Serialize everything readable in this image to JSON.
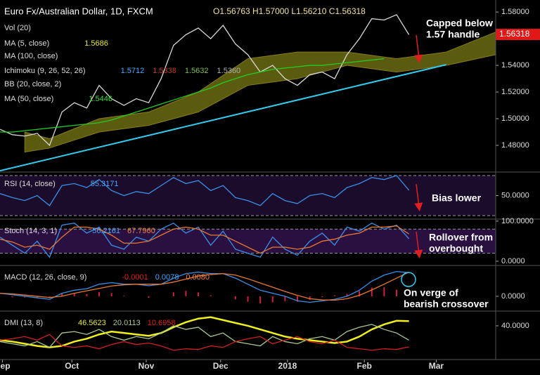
{
  "chart_data": [
    {
      "type": "line",
      "title": "Euro Fx/Australian Dollar, 1D, FXCM",
      "legend_values": "O1.56763 H1.57000 L1.56210 C1.56318",
      "indicators": [
        {
          "name": "Vol (20)"
        },
        {
          "name": "MA (5, close)",
          "readings": [
            {
              "text": "1.5686",
              "color": "#e8e840"
            }
          ]
        },
        {
          "name": "MA (100, close)"
        },
        {
          "name": "Ichimoku (9, 26, 52, 26)",
          "readings": [
            {
              "text": "1.5712",
              "color": "#4aa8ff"
            },
            {
              "text": "1.5338",
              "color": "#c0392b"
            },
            {
              "text": "1.5632",
              "color": "#7cc050"
            },
            {
              "text": "1.5360",
              "color": "#b0b0b0"
            }
          ]
        },
        {
          "name": "BB (20, close, 2)"
        },
        {
          "name": "MA (50, close)",
          "readings": [
            {
              "text": "1.5446",
              "color": "#40e040"
            }
          ]
        }
      ],
      "x": [
        0,
        5,
        10,
        15,
        20,
        25,
        30,
        35,
        40,
        45,
        50,
        55,
        60,
        65,
        70,
        75,
        80,
        85,
        90,
        95,
        100,
        105,
        110,
        115,
        120,
        125,
        130,
        135,
        140,
        145,
        150,
        155,
        160,
        165
      ],
      "series": [
        {
          "color": "#d8d8d8",
          "values": [
            1.492,
            1.488,
            1.487,
            1.489,
            1.48,
            1.505,
            1.512,
            1.508,
            1.525,
            1.515,
            1.51,
            1.515,
            1.512,
            1.53,
            1.555,
            1.563,
            1.568,
            1.56,
            1.57,
            1.556,
            1.548,
            1.535,
            1.54,
            1.53,
            1.525,
            1.533,
            1.535,
            1.53,
            1.548,
            1.56,
            1.575,
            1.574,
            1.578,
            1.563
          ]
        },
        {
          "color": "#22cc22",
          "values": [
            1.49,
            1.49,
            1.491,
            1.492,
            1.493,
            1.494,
            1.495,
            1.496,
            1.497,
            1.499,
            1.502,
            1.505,
            1.508,
            1.511,
            1.514,
            1.517,
            1.52,
            1.523,
            1.527,
            1.53,
            1.533,
            1.535,
            1.537,
            1.538,
            1.539,
            1.54,
            1.54,
            1.541,
            1.542,
            1.543,
            1.544,
            1.545,
            null,
            null
          ]
        }
      ],
      "cloud": {
        "color": "#6b6b12",
        "x": [
          10,
          20,
          40,
          60,
          80,
          100,
          120,
          140,
          160,
          180,
          200
        ],
        "upper": [
          1.49,
          1.485,
          1.5,
          1.505,
          1.52,
          1.545,
          1.55,
          1.55,
          1.545,
          1.55,
          1.565
        ],
        "lower": [
          1.475,
          1.478,
          1.49,
          1.495,
          1.505,
          1.525,
          1.53,
          1.54,
          1.535,
          1.54,
          1.548
        ]
      },
      "trendline": {
        "color": "#33ccee",
        "x": [
          0,
          180
        ],
        "values": [
          1.461,
          1.5405
        ]
      },
      "last_price": 1.56318,
      "last_price_label": "1.56318",
      "last_price_color": "#e01818",
      "annotations": [
        {
          "lines": [
            "Capped below",
            "1.57 handle"
          ]
        }
      ],
      "xlim": [
        0,
        200
      ],
      "ylim": [
        1.46,
        1.589
      ],
      "yticks": [
        {
          "value": 1.48,
          "label": "1.48000"
        },
        {
          "value": 1.5,
          "label": "1.50000"
        },
        {
          "value": 1.52,
          "label": "1.52000"
        },
        {
          "value": 1.54,
          "label": "1.54000"
        },
        {
          "value": 1.58,
          "label": "1.58000"
        }
      ]
    },
    {
      "type": "line",
      "title": "RSI (14, close)",
      "readings": [
        {
          "text": "55.3171",
          "color": "#4aa8ff"
        }
      ],
      "x": [
        0,
        5,
        10,
        15,
        20,
        25,
        30,
        35,
        40,
        45,
        50,
        55,
        60,
        65,
        70,
        75,
        80,
        85,
        90,
        95,
        100,
        105,
        110,
        115,
        120,
        125,
        130,
        135,
        140,
        145,
        150,
        155,
        160,
        165
      ],
      "series": [
        {
          "color": "#3a8fe8",
          "values": [
            52,
            48,
            45,
            50,
            40,
            60,
            62,
            58,
            66,
            55,
            50,
            54,
            52,
            60,
            68,
            62,
            65,
            55,
            60,
            48,
            45,
            40,
            52,
            45,
            42,
            50,
            52,
            48,
            58,
            62,
            68,
            66,
            70,
            55.3171
          ]
        }
      ],
      "levels": [
        70,
        30
      ],
      "background": "#1a0c2a",
      "annotations": [
        {
          "lines": [
            "Bias lower"
          ]
        }
      ],
      "xlim": [
        0,
        200
      ],
      "ylim": [
        26.5,
        73.5
      ],
      "yticks": [
        {
          "value": 50,
          "label": "50.0000"
        }
      ]
    },
    {
      "type": "line",
      "title": "Stoch (14, 3, 1)",
      "readings": [
        {
          "text": "56.2161",
          "color": "#4aa8ff"
        },
        {
          "text": "67.7960",
          "color": "#f08040"
        }
      ],
      "x": [
        0,
        5,
        10,
        15,
        20,
        25,
        30,
        35,
        40,
        45,
        50,
        55,
        60,
        65,
        70,
        75,
        80,
        85,
        90,
        95,
        100,
        105,
        110,
        115,
        120,
        125,
        130,
        135,
        140,
        145,
        150,
        155,
        160,
        165
      ],
      "series": [
        {
          "color": "#3a8fe8",
          "values": [
            60,
            40,
            20,
            50,
            10,
            90,
            95,
            70,
            85,
            40,
            30,
            60,
            50,
            80,
            95,
            70,
            85,
            40,
            75,
            30,
            20,
            10,
            60,
            30,
            15,
            50,
            70,
            40,
            85,
            75,
            95,
            80,
            90,
            56.2161
          ]
        },
        {
          "color": "#e87830",
          "values": [
            55,
            48,
            35,
            40,
            30,
            60,
            85,
            85,
            80,
            65,
            45,
            45,
            50,
            65,
            80,
            85,
            80,
            65,
            65,
            50,
            35,
            20,
            35,
            35,
            30,
            35,
            50,
            55,
            65,
            70,
            85,
            85,
            88,
            67.796
          ]
        }
      ],
      "levels": [
        80,
        20
      ],
      "background": "#2a1040",
      "annotations": [
        {
          "lines": [
            "Rollover from",
            "overbought"
          ]
        }
      ],
      "xlim": [
        0,
        200
      ],
      "ylim": [
        -7,
        105
      ],
      "yticks": [
        {
          "value": 0,
          "label": "0.0000"
        },
        {
          "value": 100,
          "label": "100.0000"
        }
      ]
    },
    {
      "type": "line",
      "title": "MACD (12, 26, close, 9)",
      "readings": [
        {
          "text": "-0.0001",
          "color": "#e02020"
        },
        {
          "text": "0.0078",
          "color": "#4aa8ff"
        },
        {
          "text": "0.0080",
          "color": "#f08040"
        }
      ],
      "x": [
        0,
        5,
        10,
        15,
        20,
        25,
        30,
        35,
        40,
        45,
        50,
        55,
        60,
        65,
        70,
        75,
        80,
        85,
        90,
        95,
        100,
        105,
        110,
        115,
        120,
        125,
        130,
        135,
        140,
        145,
        150,
        155,
        160,
        165
      ],
      "histogram": {
        "color": "#d02040",
        "values": [
          0,
          -0.0003,
          -0.0004,
          -0.0005,
          -0.0006,
          0.001,
          0.001,
          0.0007,
          0.0014,
          0.0011,
          0.0002,
          0,
          -0.0005,
          0,
          0.0013,
          0.0018,
          0.0013,
          0.0003,
          0,
          -0.001,
          -0.0018,
          -0.0024,
          -0.002,
          -0.0016,
          -0.0018,
          -0.0012,
          -0.0003,
          0.0003,
          0.0008,
          0.0017,
          0.0029,
          0.003,
          0.0022,
          -0.0001
        ]
      },
      "series": [
        {
          "color": "#3a8fe8",
          "values": [
            0.001,
            0.0005,
            0,
            -0.0005,
            -0.001,
            0.001,
            0.002,
            0.0025,
            0.004,
            0.0045,
            0.004,
            0.004,
            0.0035,
            0.004,
            0.006,
            0.0075,
            0.008,
            0.0075,
            0.0075,
            0.006,
            0.004,
            0.002,
            0.001,
            0,
            -0.0015,
            -0.002,
            -0.0015,
            -0.001,
            0,
            0.002,
            0.005,
            0.007,
            0.0082,
            0.0078
          ]
        },
        {
          "color": "#e87830",
          "values": [
            0.001,
            0.0008,
            0.0004,
            0,
            -0.0004,
            0,
            0.001,
            0.0018,
            0.0026,
            0.0034,
            0.0038,
            0.004,
            0.004,
            0.004,
            0.0047,
            0.0057,
            0.0067,
            0.0072,
            0.0075,
            0.007,
            0.0058,
            0.0044,
            0.003,
            0.0016,
            0.0003,
            -0.0008,
            -0.0012,
            -0.0013,
            -0.0008,
            0.0003,
            0.0021,
            0.004,
            0.006,
            0.008
          ]
        }
      ],
      "annotations": [
        {
          "lines": [
            "On verge of",
            "bearish crossover"
          ]
        }
      ],
      "xlim": [
        0,
        200
      ],
      "ylim": [
        -0.0042,
        0.0102
      ],
      "yticks": [
        {
          "value": 0,
          "label": "0.0000"
        }
      ]
    },
    {
      "type": "line",
      "title": "DMI (13, 8)",
      "readings": [
        {
          "text": "46.5623",
          "color": "#e8e840"
        },
        {
          "text": "20.0113",
          "color": "#a8c890"
        },
        {
          "text": "10.6958",
          "color": "#e02020"
        }
      ],
      "x": [
        0,
        5,
        10,
        15,
        20,
        25,
        30,
        35,
        40,
        45,
        50,
        55,
        60,
        65,
        70,
        75,
        80,
        85,
        90,
        95,
        100,
        105,
        110,
        115,
        120,
        125,
        130,
        135,
        140,
        145,
        150,
        155,
        160,
        165
      ],
      "series": [
        {
          "color": "#f0f020",
          "width": 2.5,
          "values": [
            20,
            18,
            15,
            12,
            10,
            12,
            18,
            22,
            28,
            32,
            30,
            28,
            26,
            30,
            38,
            45,
            50,
            52,
            48,
            44,
            40,
            35,
            30,
            25,
            22,
            20,
            18,
            16,
            18,
            25,
            35,
            42,
            47,
            46.5623
          ]
        },
        {
          "color": "#a8c890",
          "values": [
            18,
            15,
            12,
            18,
            10,
            30,
            32,
            28,
            35,
            25,
            20,
            25,
            22,
            30,
            40,
            35,
            38,
            25,
            30,
            18,
            15,
            12,
            25,
            18,
            15,
            22,
            25,
            20,
            32,
            38,
            42,
            35,
            30,
            20.0113
          ]
        },
        {
          "color": "#d02020",
          "values": [
            20,
            22,
            25,
            20,
            28,
            12,
            10,
            12,
            8,
            14,
            18,
            14,
            16,
            12,
            6,
            8,
            7,
            12,
            10,
            18,
            22,
            25,
            15,
            20,
            25,
            18,
            15,
            20,
            10,
            8,
            6,
            8,
            7,
            10.6958
          ]
        }
      ],
      "xlim": [
        0,
        200
      ],
      "ylim": [
        -7,
        60.5
      ],
      "yticks": [
        {
          "value": 40,
          "label": "40.0000"
        }
      ],
      "xticks": [
        {
          "value": 1,
          "label": "Sep"
        },
        {
          "value": 29,
          "label": "Oct"
        },
        {
          "value": 59,
          "label": "Nov"
        },
        {
          "value": 89,
          "label": "Dec"
        },
        {
          "value": 116,
          "label": "2018"
        },
        {
          "value": 147,
          "label": "Feb"
        },
        {
          "value": 176,
          "label": "Mar"
        }
      ]
    }
  ]
}
